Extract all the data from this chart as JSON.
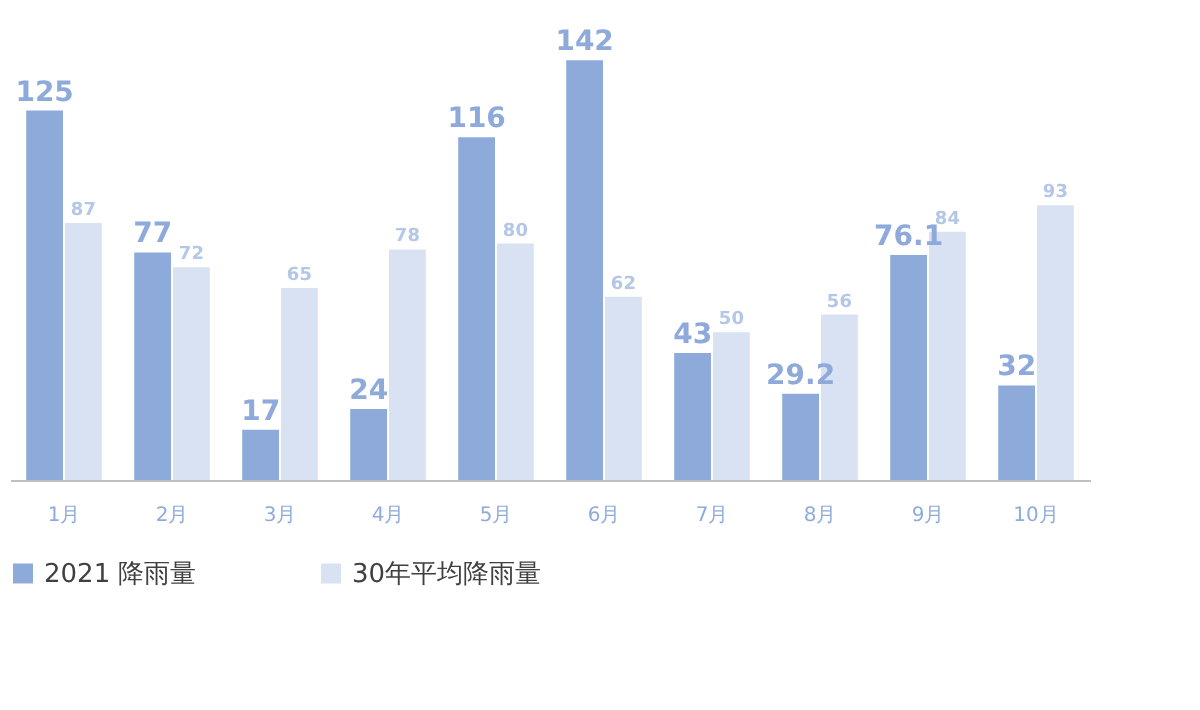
{
  "chart_data": {
    "type": "bar",
    "categories": [
      "1月",
      "2月",
      "3月",
      "4月",
      "5月",
      "6月",
      "7月",
      "8月",
      "9月",
      "10月"
    ],
    "series": [
      {
        "name": "2021 降雨量",
        "color": "#8eaadb",
        "values": [
          125,
          77,
          17,
          24,
          116,
          142,
          43,
          29.2,
          76.1,
          32
        ]
      },
      {
        "name": "30年平均降雨量",
        "color": "#d9e2f3",
        "values": [
          87,
          72,
          65,
          78,
          80,
          62,
          50,
          56,
          84,
          93
        ]
      }
    ],
    "data_labels": true,
    "legend": "bottom",
    "grid": false
  }
}
